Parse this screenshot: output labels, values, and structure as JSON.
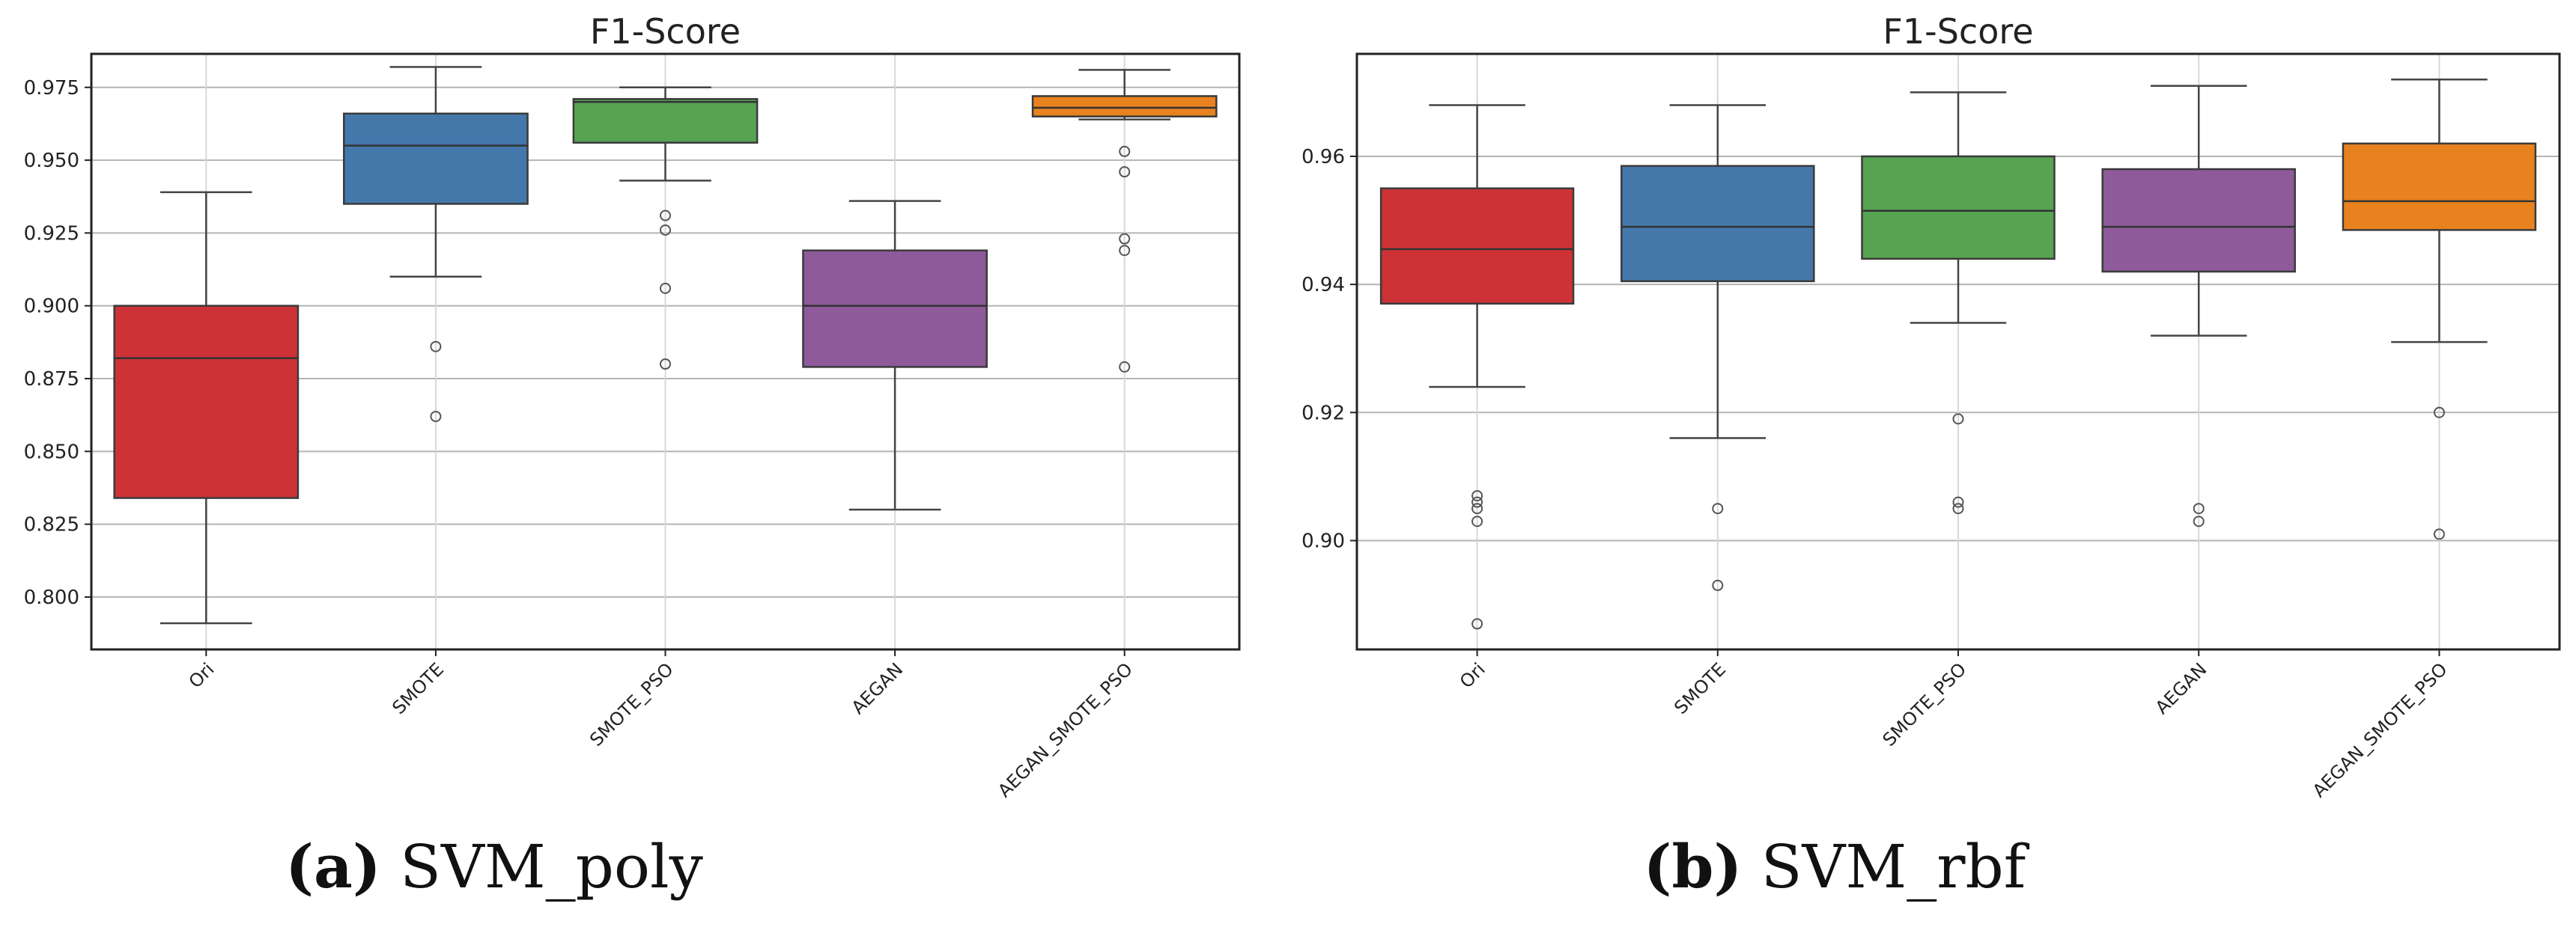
{
  "chart_data": [
    {
      "type": "box",
      "title": "F1-Score",
      "xlabel": "",
      "ylabel": "",
      "ylim": [
        0.782,
        0.9865
      ],
      "yticks": [
        0.8,
        0.825,
        0.85,
        0.875,
        0.9,
        0.925,
        0.95,
        0.975
      ],
      "ytick_labels": [
        "0.800",
        "0.825",
        "0.850",
        "0.875",
        "0.900",
        "0.925",
        "0.950",
        "0.975"
      ],
      "categories": [
        "Ori",
        "SMOTE",
        "SMOTE_PSO",
        "AEGAN",
        "AEGAN_SMOTE_PSO"
      ],
      "colors": [
        "#cd3236",
        "#4478aa",
        "#56a352",
        "#8e5a9a",
        "#e8821e"
      ],
      "boxes": [
        {
          "whisker_low": 0.791,
          "q1": 0.834,
          "median": 0.882,
          "q3": 0.9,
          "whisker_high": 0.939,
          "outliers": []
        },
        {
          "whisker_low": 0.91,
          "q1": 0.935,
          "median": 0.955,
          "q3": 0.966,
          "whisker_high": 0.982,
          "outliers": [
            0.886,
            0.862
          ]
        },
        {
          "whisker_low": 0.943,
          "q1": 0.956,
          "median": 0.97,
          "q3": 0.971,
          "whisker_high": 0.975,
          "outliers": [
            0.931,
            0.926,
            0.906,
            0.88
          ]
        },
        {
          "whisker_low": 0.83,
          "q1": 0.879,
          "median": 0.9,
          "q3": 0.919,
          "whisker_high": 0.936,
          "outliers": []
        },
        {
          "whisker_low": 0.964,
          "q1": 0.965,
          "median": 0.968,
          "q3": 0.972,
          "whisker_high": 0.981,
          "outliers": [
            0.953,
            0.946,
            0.923,
            0.919,
            0.879
          ]
        }
      ],
      "grid": true,
      "caption_letter": "(a)",
      "caption_text": "SVM_poly"
    },
    {
      "type": "box",
      "title": "F1-Score",
      "xlabel": "",
      "ylabel": "",
      "ylim": [
        0.883,
        0.976
      ],
      "yticks": [
        0.9,
        0.92,
        0.94,
        0.96
      ],
      "ytick_labels": [
        "0.90",
        "0.92",
        "0.94",
        "0.96"
      ],
      "categories": [
        "Ori",
        "SMOTE",
        "SMOTE_PSO",
        "AEGAN",
        "AEGAN_SMOTE_PSO"
      ],
      "colors": [
        "#cd3236",
        "#4478aa",
        "#56a352",
        "#8e5a9a",
        "#e8821e"
      ],
      "boxes": [
        {
          "whisker_low": 0.924,
          "q1": 0.937,
          "median": 0.9455,
          "q3": 0.955,
          "whisker_high": 0.968,
          "outliers": [
            0.907,
            0.906,
            0.905,
            0.903,
            0.887
          ]
        },
        {
          "whisker_low": 0.916,
          "q1": 0.9405,
          "median": 0.949,
          "q3": 0.9585,
          "whisker_high": 0.968,
          "outliers": [
            0.905,
            0.893
          ]
        },
        {
          "whisker_low": 0.934,
          "q1": 0.944,
          "median": 0.9515,
          "q3": 0.96,
          "whisker_high": 0.97,
          "outliers": [
            0.919,
            0.906,
            0.905
          ]
        },
        {
          "whisker_low": 0.932,
          "q1": 0.942,
          "median": 0.949,
          "q3": 0.958,
          "whisker_high": 0.971,
          "outliers": [
            0.905,
            0.903
          ]
        },
        {
          "whisker_low": 0.931,
          "q1": 0.9485,
          "median": 0.953,
          "q3": 0.962,
          "whisker_high": 0.972,
          "outliers": [
            0.92,
            0.901
          ]
        }
      ],
      "grid": true,
      "caption_letter": "(b)",
      "caption_text": "SVM_rbf"
    }
  ]
}
